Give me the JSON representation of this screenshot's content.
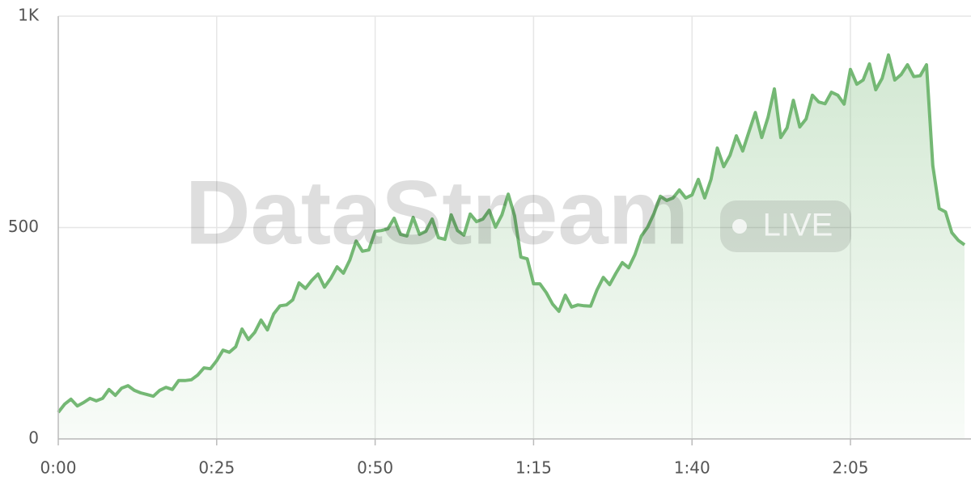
{
  "chart_data": {
    "type": "area",
    "watermark": "DataStream",
    "badge": "LIVE",
    "color": "#74b874",
    "grid": true,
    "x": [
      0,
      1,
      2,
      3,
      4,
      5,
      6,
      7,
      8,
      9,
      10,
      11,
      12,
      13,
      14,
      15,
      16,
      17,
      18,
      19,
      20,
      21,
      22,
      23,
      24,
      25,
      26,
      27,
      28,
      29,
      30,
      31,
      32,
      33,
      34,
      35,
      36,
      37,
      38,
      39,
      40,
      41,
      42,
      43,
      44,
      45,
      46,
      47,
      48,
      49,
      50,
      51,
      52,
      53,
      54,
      55,
      56,
      57,
      58,
      59,
      60,
      61,
      62,
      63,
      64,
      65,
      66,
      67,
      68,
      69,
      70,
      71,
      72,
      73,
      74,
      75,
      76,
      77,
      78,
      79,
      80,
      81,
      82,
      83,
      84,
      85,
      86,
      87,
      88,
      89,
      90,
      91,
      92,
      93,
      94,
      95,
      96,
      97,
      98,
      99,
      100,
      101,
      102,
      103,
      104,
      105,
      106,
      107,
      108,
      109,
      110,
      111,
      112,
      113,
      114,
      115,
      116,
      117,
      118,
      119,
      120,
      121,
      122,
      123,
      124,
      125,
      126,
      127,
      128,
      129,
      130,
      131,
      132,
      133,
      134,
      135,
      136,
      137,
      138,
      139,
      140,
      141,
      142,
      143
    ],
    "values": [
      63,
      82,
      94,
      78,
      86,
      96,
      90,
      96,
      117,
      103,
      120,
      126,
      115,
      109,
      105,
      101,
      115,
      122,
      117,
      138,
      138,
      140,
      151,
      168,
      166,
      185,
      210,
      205,
      218,
      260,
      235,
      252,
      281,
      258,
      296,
      315,
      317,
      329,
      369,
      356,
      375,
      390,
      359,
      380,
      407,
      392,
      423,
      468,
      444,
      447,
      491,
      493,
      497,
      522,
      484,
      480,
      524,
      484,
      491,
      520,
      476,
      472,
      530,
      493,
      482,
      532,
      514,
      520,
      541,
      501,
      530,
      579,
      528,
      430,
      426,
      367,
      367,
      346,
      319,
      302,
      340,
      312,
      317,
      315,
      314,
      352,
      382,
      365,
      392,
      417,
      405,
      436,
      480,
      501,
      533,
      574,
      564,
      570,
      589,
      570,
      577,
      614,
      570,
      614,
      688,
      644,
      671,
      717,
      681,
      727,
      772,
      713,
      761,
      828,
      713,
      736,
      801,
      738,
      757,
      813,
      797,
      793,
      820,
      813,
      792,
      874,
      839,
      849,
      887,
      826,
      853,
      908,
      849,
      862,
      885,
      857,
      859,
      885,
      646,
      545,
      537,
      488,
      470,
      459
    ],
    "xlim": [
      0,
      143
    ],
    "xticks": [
      {
        "value": 0,
        "label": "0:00"
      },
      {
        "value": 25,
        "label": "0:25"
      },
      {
        "value": 50,
        "label": "0:50"
      },
      {
        "value": 75,
        "label": "1:15"
      },
      {
        "value": 100,
        "label": "1:40"
      },
      {
        "value": 125,
        "label": "2:05"
      }
    ],
    "ylim": [
      0,
      1000
    ],
    "yticks": [
      0,
      500,
      {
        "value": 1000,
        "label": "1K"
      }
    ]
  }
}
